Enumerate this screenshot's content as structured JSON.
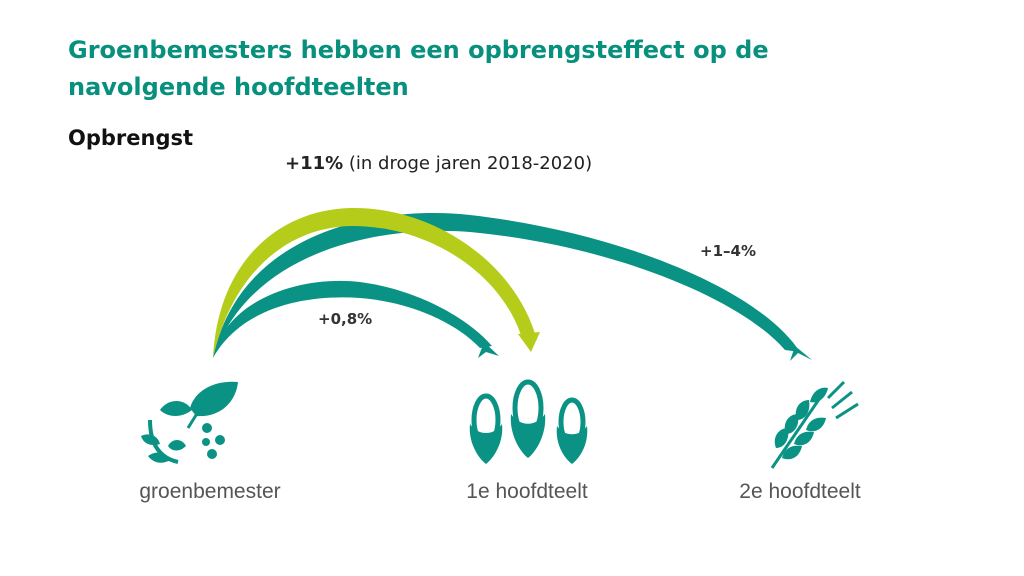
{
  "title": "Groenbemesters hebben een opbrengsteffect op de navolgende hoofdteelten",
  "section_label": "Opbrengst",
  "annotation": {
    "value": "+11%",
    "detail": "(in droge jaren 2018-2020)"
  },
  "arrows": [
    {
      "from": "groenbemester",
      "to": "1e hoofdteelt",
      "label": "+0,8%",
      "color": "#0a9384"
    },
    {
      "from": "groenbemester",
      "to": "1e hoofdteelt",
      "label": "+11%",
      "color": "#b5cd1a"
    },
    {
      "from": "groenbemester",
      "to": "2e hoofdteelt",
      "label": "+1–4%",
      "color": "#0a9384"
    }
  ],
  "nodes": {
    "source": {
      "label": "groenbemester",
      "icon": "seedling-icon"
    },
    "first": {
      "label": "1e hoofdteelt",
      "icon": "corn-icon"
    },
    "second": {
      "label": "2e hoofdteelt",
      "icon": "wheat-icon"
    }
  },
  "colors": {
    "title": "#07907e",
    "teal": "#0a9384",
    "lime": "#b5cd1a"
  }
}
